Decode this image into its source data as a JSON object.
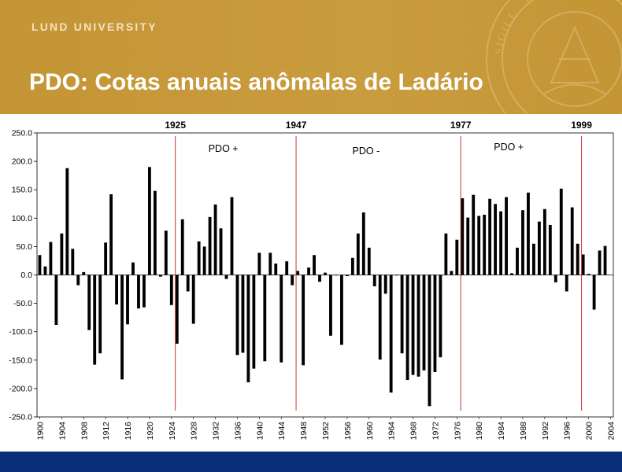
{
  "header": {
    "university": "LUND UNIVERSITY",
    "title": "PDO: Cotas anuais anômalas de Ladário",
    "seal_text": "SIGILL · UNIVERSITATIS · CAROLINAE · AD VT RVMQVE",
    "background_color": "#c79a3a",
    "footer_color": "#0a2f78"
  },
  "chart_data": {
    "type": "bar",
    "title": "",
    "xlabel": "",
    "ylabel": "",
    "ylim": [
      -250,
      250
    ],
    "yticks": [
      "250.0",
      "200.0",
      "150.0",
      "100.0",
      "50.0",
      "0.0",
      "-50.0",
      "-100.0",
      "-150.0",
      "-200.0",
      "-250.0"
    ],
    "x_start": 1900,
    "x_end": 2005,
    "xticks": [
      "1900",
      "1904",
      "1908",
      "1912",
      "1916",
      "1920",
      "1924",
      "1928",
      "1932",
      "1936",
      "1940",
      "1944",
      "1948",
      "1952",
      "1956",
      "1960",
      "1964",
      "1968",
      "1972",
      "1976",
      "1980",
      "1984",
      "1988",
      "1992",
      "1996",
      "2000",
      "2004"
    ],
    "bar_color": "#000000",
    "divider_color": "#cc3333",
    "years": [
      1900,
      1901,
      1902,
      1903,
      1904,
      1905,
      1906,
      1907,
      1908,
      1909,
      1910,
      1911,
      1912,
      1913,
      1914,
      1915,
      1916,
      1917,
      1918,
      1919,
      1920,
      1921,
      1922,
      1923,
      1924,
      1925,
      1926,
      1927,
      1928,
      1929,
      1930,
      1931,
      1932,
      1933,
      1934,
      1935,
      1936,
      1937,
      1938,
      1939,
      1940,
      1941,
      1942,
      1943,
      1944,
      1945,
      1946,
      1947,
      1948,
      1949,
      1950,
      1951,
      1952,
      1953,
      1954,
      1955,
      1956,
      1957,
      1958,
      1959,
      1960,
      1961,
      1962,
      1963,
      1964,
      1965,
      1966,
      1967,
      1968,
      1969,
      1970,
      1971,
      1972,
      1973,
      1974,
      1975,
      1976,
      1977,
      1978,
      1979,
      1980,
      1981,
      1982,
      1983,
      1984,
      1985,
      1986,
      1987,
      1988,
      1989,
      1990,
      1991,
      1992,
      1993,
      1994,
      1995,
      1996,
      1997,
      1998,
      1999,
      2000,
      2001,
      2002,
      2003
    ],
    "values": [
      35,
      15,
      58,
      -88,
      73,
      188,
      46,
      -18,
      5,
      -97,
      -158,
      -138,
      57,
      142,
      -52,
      -184,
      -87,
      22,
      -59,
      -57,
      190,
      148,
      -3,
      78,
      -53,
      -121,
      98,
      -29,
      -86,
      59,
      50,
      102,
      124,
      82,
      -7,
      137,
      -141,
      -137,
      -189,
      -165,
      39,
      -152,
      39,
      20,
      -154,
      24,
      -18,
      7,
      -159,
      13,
      35,
      -12,
      4,
      -107,
      -1,
      -123,
      -2,
      30,
      73,
      110,
      48,
      -20,
      -149,
      -33,
      -207,
      -1,
      -138,
      -185,
      -176,
      -179,
      -168,
      -231,
      -171,
      -145,
      73,
      7,
      62,
      135,
      101,
      141,
      104,
      106,
      134,
      125,
      112,
      137,
      3,
      48,
      114,
      145,
      55,
      94,
      116,
      88,
      -13,
      152,
      -29,
      119,
      55,
      36,
      2,
      -61,
      43,
      51
    ],
    "annotations": [
      {
        "year_label": "1925",
        "period": "PDO +",
        "x": 1925
      },
      {
        "year_label": "1947",
        "period": "PDO -",
        "x": 1947
      },
      {
        "year_label": "1977",
        "period": "PDO +",
        "x": 1977
      },
      {
        "year_label": "1999",
        "period": "",
        "x": 1999
      }
    ]
  }
}
